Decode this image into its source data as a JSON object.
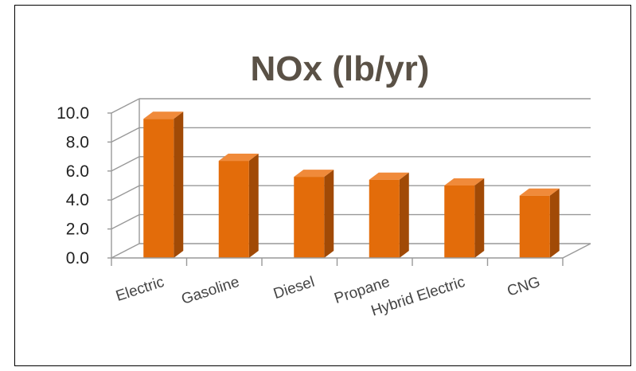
{
  "chart_data": {
    "type": "bar",
    "title": "NOx (lb/yr)",
    "categories": [
      "Electric",
      "Gasoline",
      "Diesel",
      "Propane",
      "Hybrid Electric",
      "CNG"
    ],
    "values": [
      9.6,
      6.7,
      5.6,
      5.4,
      5.0,
      4.3
    ],
    "yticks": [
      "0.0",
      "2.0",
      "4.0",
      "6.0",
      "8.0",
      "10.0"
    ],
    "ylim": [
      0,
      10
    ],
    "grid": true,
    "bar_color": "#e36c0a",
    "bar_side_color": "#a14a06",
    "bar_top_color": "#f08a3a"
  }
}
